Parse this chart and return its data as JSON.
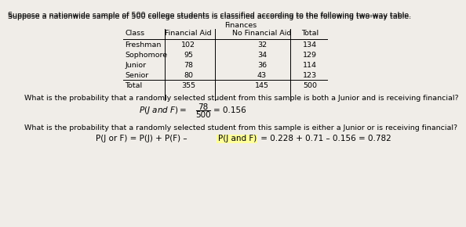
{
  "bg_color": "#f0ede8",
  "title_text": "Suppose a nationwide sample of 500 college students is classified according to the following two-way table.",
  "finances_label": "Finances",
  "table_headers": [
    "Class",
    "Financial Aid",
    "No Financial Aid",
    "Total"
  ],
  "table_rows": [
    [
      "Freshman",
      "102",
      "32",
      "134"
    ],
    [
      "Sophomore",
      "95",
      "34",
      "129"
    ],
    [
      "Junior",
      "78",
      "36",
      "114"
    ],
    [
      "Senior",
      "80",
      "43",
      "123"
    ],
    [
      "Total",
      "355",
      "145",
      "500"
    ]
  ],
  "q1_text": "What is the probability that a randomly selected student from this sample is both a Junior and is receiving financial?",
  "q1_numerator": "78",
  "q1_denominator": "500",
  "q1_result": "= 0.156",
  "q2_text": "What is the probability that a randomly selected student from this sample is either a Junior or is receiving financial?",
  "q2_formula_pre": "P(J or F) = P(J) + P(F) – ",
  "q2_highlight": "P(J and F)",
  "q2_result": " = 0.228 + 0.71 – 0.156 = 0.782",
  "highlight_color": "#ffff99",
  "text_color": "#000000",
  "font_size": 6.8,
  "formula_font_size": 7.5
}
